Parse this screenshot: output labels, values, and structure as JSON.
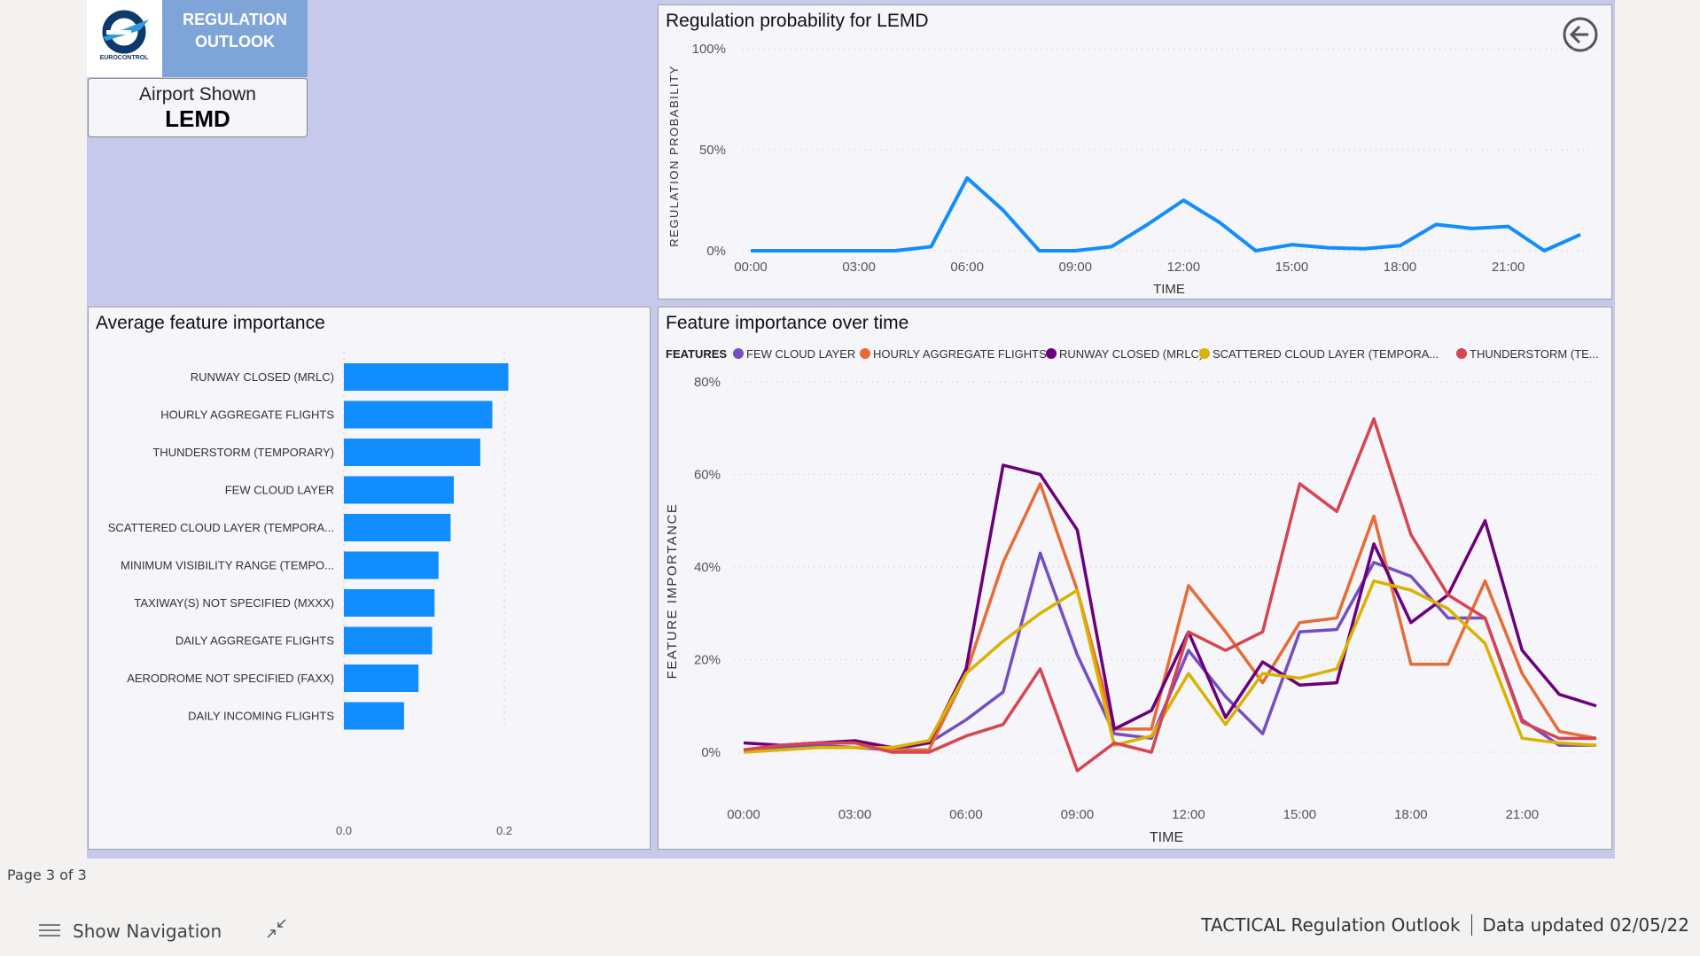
{
  "header": {
    "logo_text": "EUROCONTROL",
    "title_line1": "REGULATION",
    "title_line2": "OUTLOOK",
    "airport_label": "Airport Shown",
    "airport_value": "LEMD"
  },
  "colors": {
    "canvas": "#c6c9e9",
    "bar": "#118dff",
    "prob_line": "#118dff"
  },
  "icons": {
    "back": "back-arrow-circle-icon",
    "nav": "hamburger-icon",
    "collapse": "collapse-arrows-icon"
  },
  "chart_data": [
    {
      "type": "line",
      "title": "Regulation probability for LEMD",
      "xlabel": "TIME",
      "ylabel": "REGULATION PROBABILITY",
      "x": [
        "00:00",
        "01:00",
        "02:00",
        "03:00",
        "04:00",
        "05:00",
        "06:00",
        "07:00",
        "08:00",
        "09:00",
        "10:00",
        "11:00",
        "12:00",
        "13:00",
        "14:00",
        "15:00",
        "16:00",
        "17:00",
        "18:00",
        "19:00",
        "20:00",
        "21:00",
        "22:00",
        "23:00"
      ],
      "xticks": [
        "00:00",
        "03:00",
        "06:00",
        "09:00",
        "12:00",
        "15:00",
        "18:00",
        "21:00"
      ],
      "yticks": [
        "0%",
        "50%",
        "100%"
      ],
      "ylim": [
        0,
        100
      ],
      "grid": true,
      "values": [
        0,
        0,
        0,
        0,
        0,
        2,
        36,
        20,
        0,
        0,
        2,
        13,
        25,
        14,
        0,
        3,
        1.5,
        1,
        2.5,
        13,
        11,
        12,
        0,
        8
      ]
    },
    {
      "type": "bar",
      "orientation": "horizontal",
      "title": "Average feature importance",
      "categories": [
        "RUNWAY CLOSED (MRLC)",
        "HOURLY AGGREGATE FLIGHTS",
        "THUNDERSTORM (TEMPORARY)",
        "FEW CLOUD LAYER",
        "SCATTERED CLOUD LAYER (TEMPORA...",
        "MINIMUM VISIBILITY RANGE (TEMPO...",
        "TAXIWAY(S) NOT SPECIFIED (MXXX)",
        "DAILY AGGREGATE FLIGHTS",
        "AERODROME NOT SPECIFIED (FAXX)",
        "DAILY INCOMING FLIGHTS"
      ],
      "values": [
        0.205,
        0.185,
        0.17,
        0.137,
        0.133,
        0.118,
        0.113,
        0.11,
        0.093,
        0.075
      ],
      "xticks": [
        "0.0",
        "0.2"
      ],
      "xlim": [
        0,
        0.3
      ],
      "grid": true
    },
    {
      "type": "line",
      "title": "Feature importance over time",
      "xlabel": "TIME",
      "ylabel": "FEATURE IMPORTANCE",
      "legend_title": "FEATURES",
      "legend": "top",
      "xticks": [
        "00:00",
        "03:00",
        "06:00",
        "09:00",
        "12:00",
        "15:00",
        "18:00",
        "21:00"
      ],
      "yticks": [
        "0%",
        "20%",
        "40%",
        "60%",
        "80%"
      ],
      "ylim": [
        -10,
        80
      ],
      "grid": true,
      "series": [
        {
          "name": "FEW CLOUD LAYER",
          "color": "#744ec2",
          "values": [
            0.5,
            1,
            1.5,
            1,
            0.5,
            2,
            7,
            13,
            43,
            21,
            4,
            3,
            22,
            12,
            4,
            26,
            26.5,
            41,
            38,
            29,
            29,
            7,
            1.5,
            1.5
          ]
        },
        {
          "name": "HOURLY AGGREGATE FLIGHTS",
          "color": "#e66c37",
          "values": [
            0.5,
            1.5,
            2,
            2,
            0.5,
            0.5,
            17,
            41,
            58,
            35,
            5,
            5,
            36,
            26,
            15,
            28,
            29,
            51,
            19,
            19,
            37,
            17,
            4.5,
            3
          ]
        },
        {
          "name": "RUNWAY CLOSED (MRLC)",
          "color": "#6b007b",
          "values": [
            2,
            1.5,
            2,
            2.5,
            1,
            2,
            18,
            62,
            60,
            48,
            5,
            9,
            26,
            7.5,
            19.5,
            14.5,
            15,
            45,
            28,
            34,
            50,
            22,
            12.5,
            10
          ]
        },
        {
          "name": "SCATTERED CLOUD LAYER (TEMPORA...",
          "color": "#d9b300",
          "values": [
            0,
            0.5,
            1,
            1,
            1,
            2.5,
            17,
            24,
            30,
            35,
            1.5,
            3.5,
            17,
            6,
            17,
            16,
            18,
            37,
            35,
            31,
            23.5,
            3,
            2,
            1.5
          ]
        },
        {
          "name": "THUNDERSTORM (TE...",
          "color": "#d64550",
          "values": [
            0.5,
            1.5,
            2,
            2,
            0,
            0,
            3.5,
            6,
            18,
            -4,
            2,
            0,
            26,
            22,
            26,
            58,
            52,
            72,
            47,
            34,
            29,
            6.5,
            3,
            3
          ]
        }
      ]
    }
  ],
  "footer": {
    "page": "Page 3 of 3",
    "show_nav": "Show Navigation",
    "report": "TACTICAL Regulation Outlook",
    "updated": "Data updated 02/05/22"
  }
}
